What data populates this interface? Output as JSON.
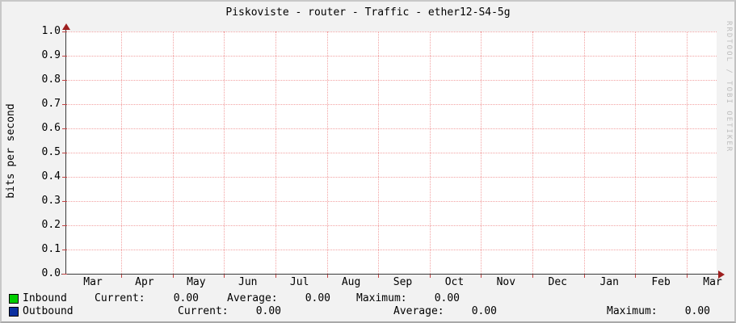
{
  "title": "Piskoviste - router - Traffic - ether12-S4-5g",
  "watermark": "RRDTOOL / TOBI OETIKER",
  "chart_data": {
    "type": "line",
    "title": "Piskoviste - router - Traffic - ether12-S4-5g",
    "xlabel": "",
    "ylabel": "bits per second",
    "ylim": [
      0.0,
      1.0
    ],
    "y_tick_step": 0.1,
    "y_tick_labels": [
      "0.0",
      "0.1",
      "0.2",
      "0.3",
      "0.4",
      "0.5",
      "0.6",
      "0.7",
      "0.8",
      "0.9",
      "1.0"
    ],
    "x_tick_labels": [
      "Mar",
      "Apr",
      "May",
      "Jun",
      "Jul",
      "Aug",
      "Sep",
      "Oct",
      "Nov",
      "Dec",
      "Jan",
      "Feb",
      "Mar"
    ],
    "grid": true,
    "legend_position": "bottom",
    "series": [
      {
        "name": "Inbound",
        "color": "#00CD00",
        "values": [
          0,
          0,
          0,
          0,
          0,
          0,
          0,
          0,
          0,
          0,
          0,
          0,
          0
        ]
      },
      {
        "name": "Outbound",
        "color": "#0B2FA0",
        "values": [
          0,
          0,
          0,
          0,
          0,
          0,
          0,
          0,
          0,
          0,
          0,
          0,
          0
        ]
      }
    ]
  },
  "legend": {
    "rows": [
      {
        "name": "Inbound",
        "swatch_color": "#00CD00",
        "current_label": "Current:",
        "current": "0.00",
        "average_label": "Average:",
        "average": "0.00",
        "maximum_label": "Maximum:",
        "maximum": "0.00"
      },
      {
        "name": "Outbound",
        "swatch_color": "#0B2FA0",
        "current_label": "Current:",
        "current": "0.00",
        "average_label": "Average:",
        "average": "0.00",
        "maximum_label": "Maximum:",
        "maximum": "0.00"
      }
    ]
  },
  "colors": {
    "background": "#f2f2f2",
    "plot_background": "#ffffff",
    "grid": "#f2a2a2",
    "axis": "#3a3a3a",
    "arrow": "#9e1f1f",
    "inbound": "#00CD00",
    "outbound": "#0B2FA0"
  }
}
